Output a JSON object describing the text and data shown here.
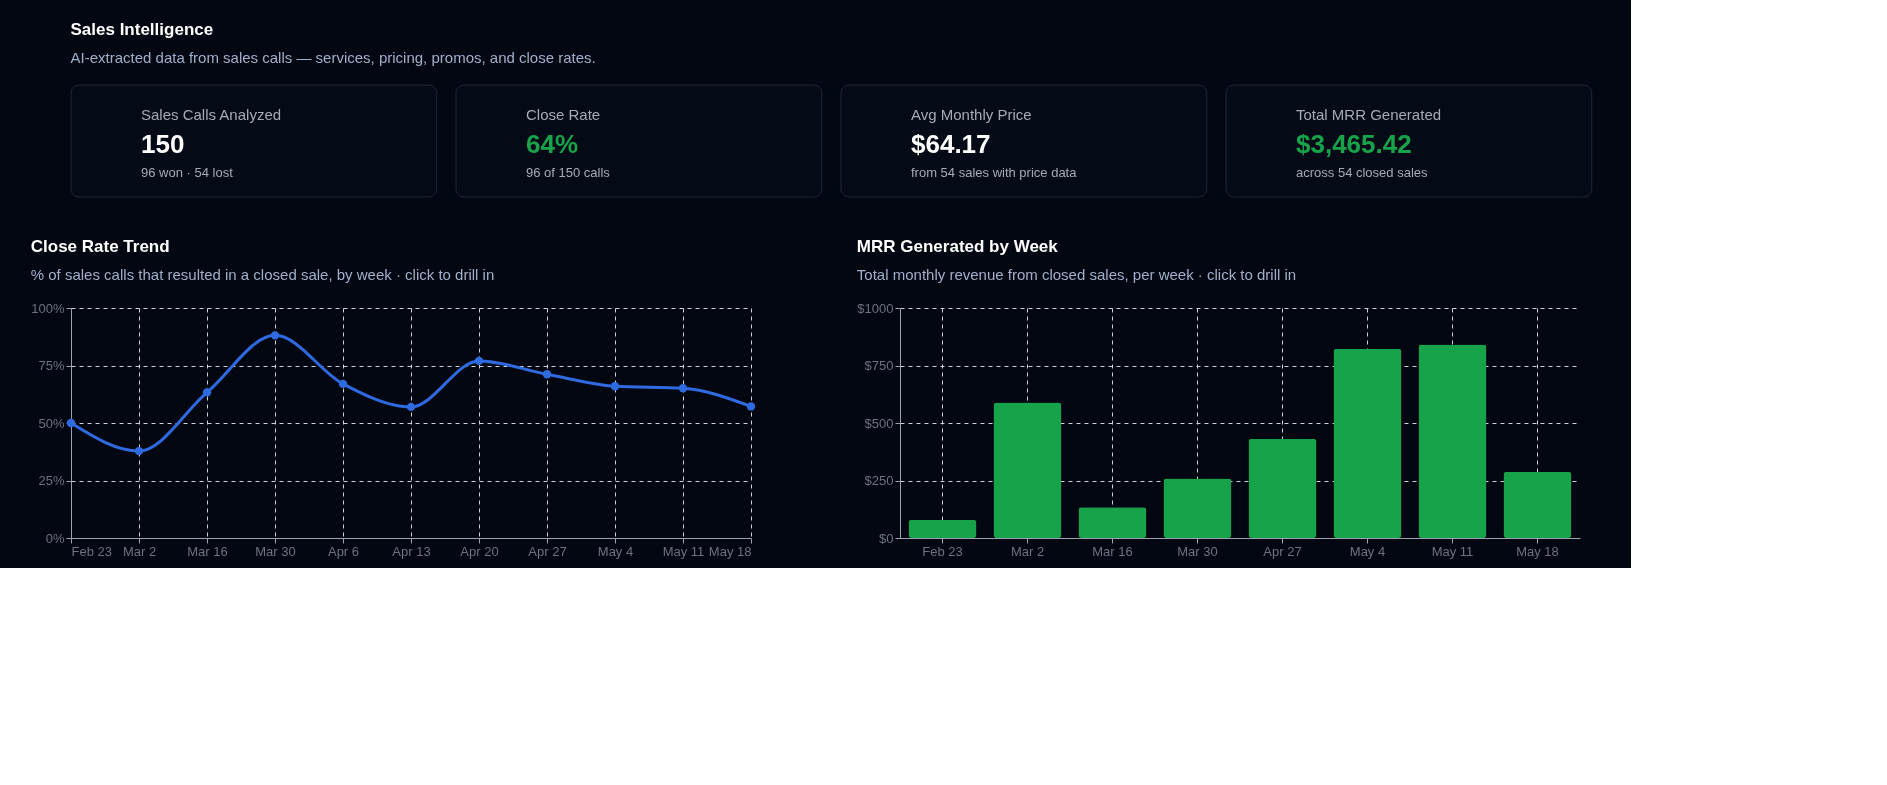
{
  "chart_data": [
    {
      "type": "other",
      "title": "Sales Intelligence",
      "subtitle": "AI-extracted data from sales calls — services, pricing, promos, and close rates.",
      "annotations": [
        "Sales Calls Analyzed",
        "150",
        "96 won · 54 lost",
        "Close Rate",
        "64%",
        "96 of 150 calls",
        "Avg Monthly Price",
        "$64.17",
        "from 54 sales with price data",
        "Total MRR Generated",
        "$3,465.42",
        "across 54 closed sales"
      ],
      "colors": [
        "#a3abb8",
        "#ffffff",
        "#a3abb8",
        "#a3abb8",
        "#16a34a",
        "#a3abb8",
        "#a3abb8",
        "#ffffff",
        "#a3abb8",
        "#a3abb8",
        "#16a34a",
        "#a3abb8"
      ]
    },
    {
      "type": "line",
      "title": "Close Rate Trend",
      "subtitle": "% of sales calls that resulted in a closed sale, by week · click to drill in",
      "categories": [
        "Feb 23",
        "Mar 2",
        "Mar 16",
        "Mar 30",
        "Apr 6",
        "Apr 13",
        "Apr 20",
        "Apr 27",
        "May 4",
        "May 11",
        "May 18"
      ],
      "series": [
        {
          "color": "#2f6ae0",
          "values": [
            50,
            37.8,
            63.3,
            88.1,
            67,
            57,
            77,
            71.2,
            66,
            65.1,
            57.2
          ]
        }
      ],
      "ylim": [
        0,
        100
      ],
      "yticks": [
        {
          "value": 0,
          "label": "0%"
        },
        {
          "value": 25,
          "label": "25%"
        },
        {
          "value": 50,
          "label": "50%"
        },
        {
          "value": 75,
          "label": "75%"
        },
        {
          "value": 100,
          "label": "100%"
        }
      ],
      "grid": true,
      "marker": "circle",
      "line_style": "solid"
    },
    {
      "type": "bar",
      "title": "MRR Generated by Week",
      "subtitle": "Total monthly revenue from closed sales, per week · click to drill in",
      "categories": [
        "Feb 23",
        "Mar 2",
        "Mar 16",
        "Mar 30",
        "Apr 27",
        "May 4",
        "May 11",
        "May 18"
      ],
      "series": [
        {
          "color": "#16a34a",
          "values": [
            79,
            589,
            134,
            259,
            432,
            823,
            841,
            288
          ]
        }
      ],
      "ylim": [
        0,
        1000
      ],
      "yticks": [
        {
          "value": 0,
          "label": "$0"
        },
        {
          "value": 250,
          "label": "$250"
        },
        {
          "value": 500,
          "label": "$500"
        },
        {
          "value": 750,
          "label": "$750"
        },
        {
          "value": 1000,
          "label": "$1000"
        }
      ],
      "grid": true
    }
  ]
}
